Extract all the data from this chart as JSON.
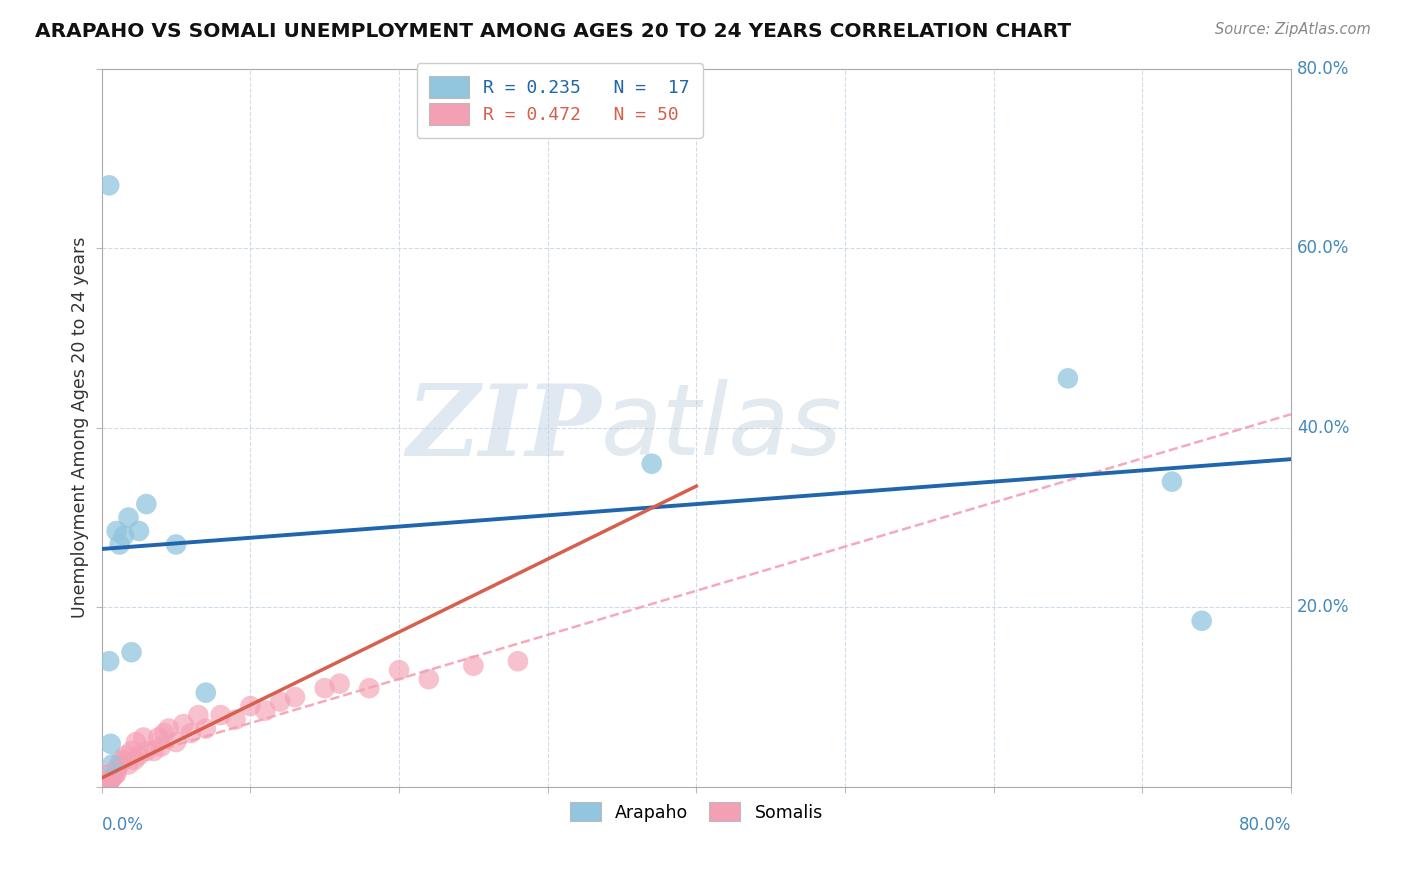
{
  "title": "ARAPAHO VS SOMALI UNEMPLOYMENT AMONG AGES 20 TO 24 YEARS CORRELATION CHART",
  "source": "Source: ZipAtlas.com",
  "ylabel": "Unemployment Among Ages 20 to 24 years",
  "arapaho_color": "#92c5de",
  "somali_color": "#f4a0b4",
  "arapaho_line_color": "#2166ac",
  "somali_line_color": "#d6604d",
  "somali_dash_color": "#f4a0b4",
  "watermark_zip": "ZIP",
  "watermark_atlas": "atlas",
  "background_color": "#ffffff",
  "xlim": [
    0.0,
    0.8
  ],
  "ylim": [
    0.0,
    0.8
  ],
  "arapaho_x": [
    0.005,
    0.005,
    0.006,
    0.007,
    0.01,
    0.012,
    0.015,
    0.018,
    0.02,
    0.025,
    0.03,
    0.05,
    0.07,
    0.37,
    0.65,
    0.72,
    0.74
  ],
  "arapaho_y": [
    0.67,
    0.14,
    0.048,
    0.025,
    0.285,
    0.27,
    0.28,
    0.3,
    0.15,
    0.285,
    0.315,
    0.27,
    0.105,
    0.36,
    0.455,
    0.34,
    0.185
  ],
  "somali_x": [
    0.0,
    0.0,
    0.0,
    0.0,
    0.0,
    0.0,
    0.0,
    0.0,
    0.005,
    0.005,
    0.006,
    0.007,
    0.008,
    0.009,
    0.01,
    0.01,
    0.012,
    0.013,
    0.015,
    0.016,
    0.018,
    0.02,
    0.022,
    0.023,
    0.025,
    0.028,
    0.03,
    0.035,
    0.038,
    0.04,
    0.042,
    0.045,
    0.05,
    0.055,
    0.06,
    0.065,
    0.07,
    0.08,
    0.09,
    0.1,
    0.11,
    0.12,
    0.13,
    0.15,
    0.16,
    0.18,
    0.2,
    0.22,
    0.25,
    0.28
  ],
  "somali_y": [
    0.0,
    0.002,
    0.003,
    0.004,
    0.005,
    0.006,
    0.007,
    0.01,
    0.005,
    0.007,
    0.008,
    0.01,
    0.012,
    0.014,
    0.015,
    0.02,
    0.025,
    0.03,
    0.03,
    0.035,
    0.025,
    0.04,
    0.03,
    0.05,
    0.035,
    0.055,
    0.04,
    0.04,
    0.055,
    0.045,
    0.06,
    0.065,
    0.05,
    0.07,
    0.06,
    0.08,
    0.065,
    0.08,
    0.075,
    0.09,
    0.085,
    0.095,
    0.1,
    0.11,
    0.115,
    0.11,
    0.13,
    0.12,
    0.135,
    0.14
  ],
  "legend_label_arapaho": "R = 0.235   N =  17",
  "legend_label_somali": "R = 0.472   N = 50",
  "bottom_legend_arapaho": "Arapaho",
  "bottom_legend_somali": "Somalis"
}
